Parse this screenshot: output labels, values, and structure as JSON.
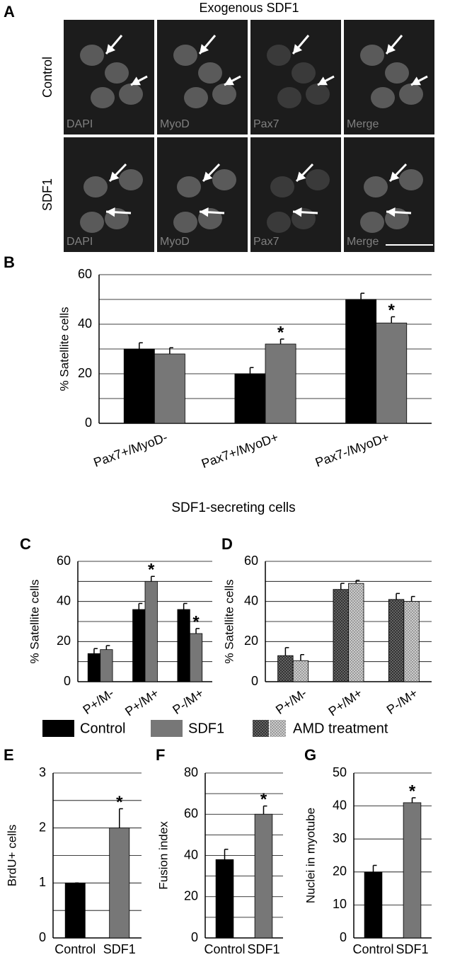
{
  "panel_a": {
    "letter": "A",
    "title": "Exogenous SDF1",
    "rows": [
      "Control",
      "SDF1"
    ],
    "channels": [
      "DAPI",
      "MyoD",
      "Pax7",
      "Merge"
    ]
  },
  "section_title": "SDF1-secreting cells",
  "chart_data": [
    {
      "type": "bar",
      "letter": "B",
      "ylabel": "% Satellite cells",
      "categories": [
        "Pax7+/MyoD-",
        "Pax7+/MyoD+",
        "Pax7-/MyoD+"
      ],
      "ylim": [
        0,
        60
      ],
      "yticks": [
        0,
        20,
        40,
        60
      ],
      "minor_yticks": [
        10,
        30,
        50
      ],
      "grid": true,
      "series": [
        {
          "name": "Control",
          "color": "#000000",
          "values": [
            30,
            20,
            50
          ],
          "errors": [
            2.5,
            2.5,
            2.5
          ],
          "marks": [
            null,
            null,
            null
          ]
        },
        {
          "name": "SDF1",
          "color": "#777777",
          "values": [
            28,
            32,
            40.5
          ],
          "errors": [
            2.5,
            2,
            2.5
          ],
          "marks": [
            null,
            "*",
            "*"
          ]
        }
      ]
    },
    {
      "type": "bar",
      "letter": "C",
      "ylabel": "% Satellite cells",
      "categories": [
        "P+/M-",
        "P+/M+",
        "P-/M+"
      ],
      "ylim": [
        0,
        60
      ],
      "yticks": [
        0,
        20,
        40,
        60
      ],
      "minor_yticks": [
        10,
        30,
        50
      ],
      "grid": true,
      "series": [
        {
          "name": "Control",
          "color": "#000000",
          "values": [
            14,
            36,
            36
          ],
          "errors": [
            2.5,
            3,
            3
          ],
          "marks": [
            null,
            null,
            null
          ]
        },
        {
          "name": "SDF1",
          "color": "#777777",
          "values": [
            16,
            50,
            24
          ],
          "errors": [
            2,
            2.5,
            2.5
          ],
          "marks": [
            null,
            "*",
            "*"
          ]
        }
      ]
    },
    {
      "type": "bar",
      "letter": "D",
      "ylabel": "% Satellite cells",
      "legend": "AMD treatment",
      "categories": [
        "P+/M-",
        "P+/M+",
        "P-/M+"
      ],
      "ylim": [
        0,
        60
      ],
      "yticks": [
        0,
        20,
        40,
        60
      ],
      "minor_yticks": [
        10,
        30,
        50
      ],
      "grid": true,
      "pattern": true,
      "series": [
        {
          "color": "#333333",
          "values": [
            13,
            46,
            41
          ],
          "errors": [
            4,
            3,
            3
          ],
          "marks": [
            null,
            null,
            null
          ]
        },
        {
          "color": "#bbbbbb",
          "values": [
            10.5,
            49,
            40
          ],
          "errors": [
            3,
            1.5,
            2.5
          ],
          "marks": [
            null,
            null,
            null
          ]
        }
      ]
    },
    {
      "type": "bar",
      "letter": "E",
      "ylabel": "BrdU+ cells",
      "categories": [
        "Control",
        "SDF1"
      ],
      "ylim": [
        0,
        3
      ],
      "yticks": [
        0,
        1,
        2,
        3
      ],
      "minor_yticks": [
        0.5,
        1.5,
        2.5
      ],
      "grid": true,
      "series": [
        {
          "colors": [
            "#000000",
            "#777777"
          ],
          "values": [
            1,
            2
          ],
          "errors": [
            0,
            0.35
          ],
          "marks": [
            null,
            "*"
          ]
        }
      ]
    },
    {
      "type": "bar",
      "letter": "F",
      "ylabel": "Fusion index",
      "categories": [
        "Control",
        "SDF1"
      ],
      "ylim": [
        0,
        80
      ],
      "yticks": [
        0,
        20,
        40,
        60,
        80
      ],
      "minor_yticks": [
        10,
        30,
        50,
        70
      ],
      "grid": true,
      "series": [
        {
          "colors": [
            "#000000",
            "#777777"
          ],
          "values": [
            38,
            60
          ],
          "errors": [
            5,
            4
          ],
          "marks": [
            null,
            "*"
          ]
        }
      ]
    },
    {
      "type": "bar",
      "letter": "G",
      "ylabel": "Nuclei in myotube",
      "categories": [
        "Control",
        "SDF1"
      ],
      "ylim": [
        0,
        50
      ],
      "yticks": [
        0,
        10,
        20,
        30,
        40,
        50
      ],
      "grid": true,
      "series": [
        {
          "colors": [
            "#000000",
            "#777777"
          ],
          "values": [
            20,
            41
          ],
          "errors": [
            2,
            1.5
          ],
          "marks": [
            null,
            "*"
          ]
        }
      ]
    }
  ]
}
